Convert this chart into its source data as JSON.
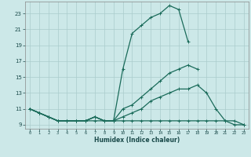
{
  "xlabel": "Humidex (Indice chaleur)",
  "bg_color": "#cce8e8",
  "grid_color": "#aacccc",
  "line_color": "#1a6b5a",
  "x_values": [
    0,
    1,
    2,
    3,
    4,
    5,
    6,
    7,
    8,
    9,
    10,
    11,
    12,
    13,
    14,
    15,
    16,
    17,
    18,
    19,
    20,
    21,
    22,
    23
  ],
  "line1": [
    11,
    10.5,
    10,
    9.5,
    9.5,
    9.5,
    9.5,
    10,
    9.5,
    9.5,
    16,
    20.5,
    21.5,
    22.5,
    23,
    24,
    23.5,
    19.5,
    null,
    null,
    null,
    null,
    null,
    null
  ],
  "line2": [
    11,
    10.5,
    10,
    9.5,
    9.5,
    9.5,
    9.5,
    10,
    9.5,
    9.5,
    11,
    11.5,
    12.5,
    13.5,
    14.5,
    15.5,
    16,
    16.5,
    16,
    null,
    null,
    null,
    null,
    null
  ],
  "line3": [
    11,
    10.5,
    10,
    9.5,
    9.5,
    9.5,
    9.5,
    10,
    9.5,
    9.5,
    10,
    10.5,
    11,
    12,
    12.5,
    13,
    13.5,
    13.5,
    14,
    13,
    11,
    9.5,
    9,
    9
  ],
  "line4": [
    11,
    10.5,
    10,
    9.5,
    9.5,
    9.5,
    9.5,
    9.5,
    9.5,
    9.5,
    9.5,
    9.5,
    9.5,
    9.5,
    9.5,
    9.5,
    9.5,
    9.5,
    9.5,
    9.5,
    9.5,
    9.5,
    9.5,
    9
  ],
  "ylim": [
    8.5,
    24.5
  ],
  "xlim": [
    -0.5,
    23.5
  ],
  "yticks": [
    9,
    11,
    13,
    15,
    17,
    19,
    21,
    23
  ],
  "xticks": [
    0,
    1,
    2,
    3,
    4,
    5,
    6,
    7,
    8,
    9,
    10,
    11,
    12,
    13,
    14,
    15,
    16,
    17,
    18,
    19,
    20,
    21,
    22,
    23
  ]
}
